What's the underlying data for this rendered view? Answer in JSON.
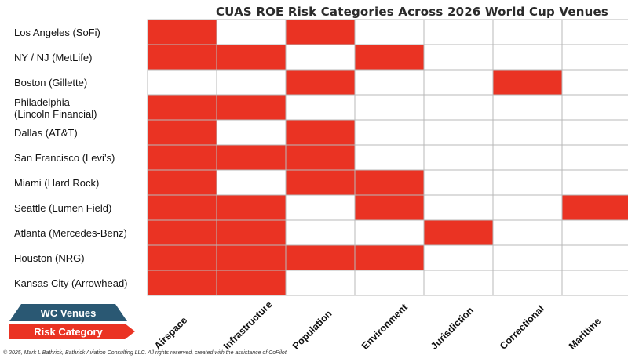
{
  "chart_data": {
    "type": "heatmap",
    "title": "CUAS ROE Risk Categories Across 2026 World Cup Venues",
    "rows": [
      "Los Angeles (SoFi)",
      "NY / NJ (MetLife)",
      "Boston (Gillette)",
      "Philadelphia\n(Lincoln Financial)",
      "Dallas (AT&T)",
      "San Francisco (Levi’s)",
      "Miami (Hard Rock)",
      "Seattle (Lumen Field)",
      "Atlanta (Mercedes-Benz)",
      "Houston (NRG)",
      "Kansas City (Arrowhead)"
    ],
    "columns": [
      "Airspace",
      "Infrastructure",
      "Population",
      "Environment",
      "Jurisdiction",
      "Correctional",
      "Maritime"
    ],
    "values": [
      [
        1,
        0,
        1,
        0,
        0,
        0,
        0
      ],
      [
        1,
        1,
        0,
        1,
        0,
        0,
        0
      ],
      [
        0,
        0,
        1,
        0,
        0,
        1,
        0
      ],
      [
        1,
        1,
        0,
        0,
        0,
        0,
        0
      ],
      [
        1,
        0,
        1,
        0,
        0,
        0,
        0
      ],
      [
        1,
        1,
        1,
        0,
        0,
        0,
        0
      ],
      [
        1,
        0,
        1,
        1,
        0,
        0,
        0
      ],
      [
        1,
        1,
        0,
        1,
        0,
        0,
        1
      ],
      [
        1,
        1,
        0,
        0,
        1,
        0,
        0
      ],
      [
        1,
        1,
        1,
        1,
        0,
        0,
        0
      ],
      [
        1,
        1,
        0,
        0,
        0,
        0,
        0
      ]
    ],
    "legend": [
      {
        "label": "WC Venues",
        "color": "#2a5873"
      },
      {
        "label": "Risk Category",
        "color": "#ea3323"
      }
    ],
    "colors": {
      "risk": "#ea3323",
      "none": "#ffffff",
      "grid": "#b8b8b8"
    }
  },
  "footer": "© 2025, Mark L Bathrick, Bathrick Aviation Consulting LLC. All rights reserved, created with the assistance of CoPilot"
}
